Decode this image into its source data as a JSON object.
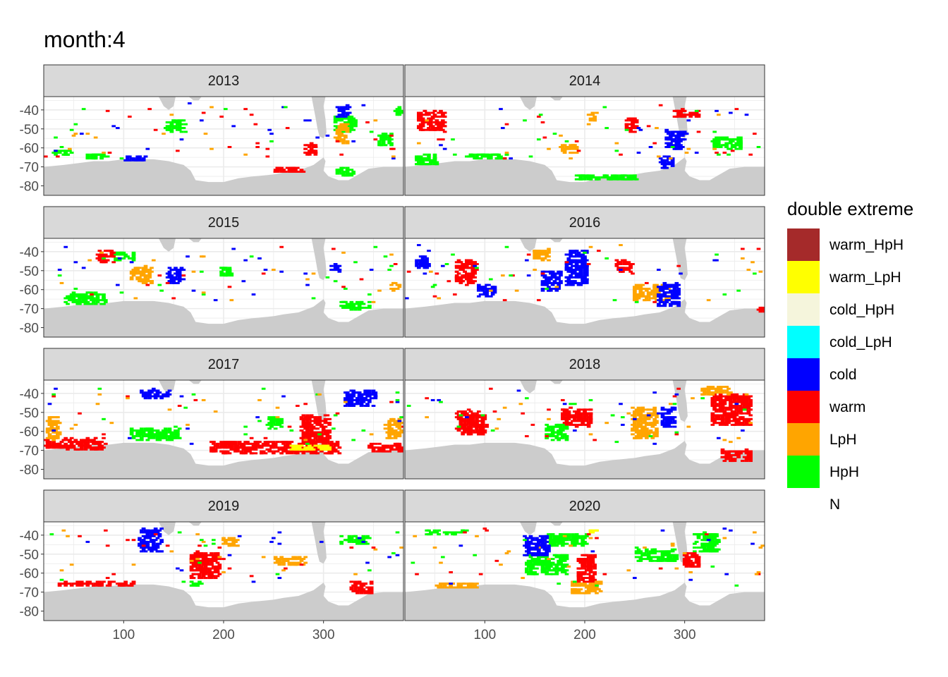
{
  "chart_data": {
    "type": "heatmap",
    "title": "month:4",
    "xlabel": "",
    "ylabel": "",
    "xlim": [
      20,
      380
    ],
    "ylim": [
      -85,
      -33
    ],
    "x_ticks": [
      100,
      200,
      300
    ],
    "y_ticks": [
      -40,
      -50,
      -60,
      -70,
      -80
    ],
    "grid": true,
    "legend": {
      "title": "double extreme",
      "position": "right",
      "entries": [
        {
          "label": "warm_HpH",
          "color": "#A52A2A"
        },
        {
          "label": "warm_LpH",
          "color": "#FFFF00"
        },
        {
          "label": "cold_HpH",
          "color": "#F5F5DC"
        },
        {
          "label": "cold_LpH",
          "color": "#00FFFF"
        },
        {
          "label": "cold",
          "color": "#0000FF"
        },
        {
          "label": "warm",
          "color": "#FF0000"
        },
        {
          "label": "LpH",
          "color": "#FFA500"
        },
        {
          "label": "HpH",
          "color": "#00FF00"
        },
        {
          "label": "N",
          "color": "#FFFFFF"
        }
      ]
    },
    "panels": [
      {
        "year": "2013",
        "regions": [
          {
            "cat": "HpH",
            "lon": 36,
            "lat": -62,
            "w": 20,
            "h": 3
          },
          {
            "cat": "HpH",
            "lon": 72,
            "lat": -64,
            "w": 22,
            "h": 3
          },
          {
            "cat": "HpH",
            "lon": 150,
            "lat": -48,
            "w": 20,
            "h": 6
          },
          {
            "cat": "HpH",
            "lon": 320,
            "lat": -47,
            "w": 22,
            "h": 8
          },
          {
            "cat": "HpH",
            "lon": 360,
            "lat": -55,
            "w": 14,
            "h": 6
          },
          {
            "cat": "HpH",
            "lon": 372,
            "lat": -40,
            "w": 8,
            "h": 4
          },
          {
            "cat": "HpH",
            "lon": 320,
            "lat": -72,
            "w": 18,
            "h": 4
          },
          {
            "cat": "LpH",
            "lon": 316,
            "lat": -52,
            "w": 12,
            "h": 10
          },
          {
            "cat": "warm",
            "lon": 285,
            "lat": -60,
            "w": 12,
            "h": 6
          },
          {
            "cat": "warm",
            "lon": 265,
            "lat": -71,
            "w": 30,
            "h": 3
          },
          {
            "cat": "cold",
            "lon": 318,
            "lat": -40,
            "w": 12,
            "h": 6
          },
          {
            "cat": "cold",
            "lon": 110,
            "lat": -65,
            "w": 20,
            "h": 3
          }
        ]
      },
      {
        "year": "2014",
        "regions": [
          {
            "cat": "warm",
            "lon": 45,
            "lat": -45,
            "w": 28,
            "h": 10
          },
          {
            "cat": "warm",
            "lon": 245,
            "lat": -47,
            "w": 12,
            "h": 8
          },
          {
            "cat": "warm",
            "lon": 300,
            "lat": -41,
            "w": 26,
            "h": 4
          },
          {
            "cat": "LpH",
            "lon": 182,
            "lat": -60,
            "w": 18,
            "h": 4
          },
          {
            "cat": "LpH",
            "lon": 206,
            "lat": -43,
            "w": 8,
            "h": 4
          },
          {
            "cat": "cold",
            "lon": 280,
            "lat": -67,
            "w": 12,
            "h": 6
          },
          {
            "cat": "cold",
            "lon": 290,
            "lat": -55,
            "w": 20,
            "h": 10
          },
          {
            "cat": "HpH",
            "lon": 40,
            "lat": -66,
            "w": 22,
            "h": 6
          },
          {
            "cat": "HpH",
            "lon": 100,
            "lat": -64,
            "w": 40,
            "h": 3
          },
          {
            "cat": "HpH",
            "lon": 220,
            "lat": -75,
            "w": 60,
            "h": 3
          },
          {
            "cat": "HpH",
            "lon": 340,
            "lat": -57,
            "w": 30,
            "h": 6
          }
        ]
      },
      {
        "year": "2015",
        "regions": [
          {
            "cat": "LpH",
            "lon": 116,
            "lat": -52,
            "w": 20,
            "h": 8
          },
          {
            "cat": "HpH",
            "lon": 60,
            "lat": -64,
            "w": 40,
            "h": 6
          },
          {
            "cat": "HpH",
            "lon": 100,
            "lat": -42,
            "w": 20,
            "h": 4
          },
          {
            "cat": "HpH",
            "lon": 200,
            "lat": -50,
            "w": 12,
            "h": 5
          },
          {
            "cat": "HpH",
            "lon": 330,
            "lat": -68,
            "w": 30,
            "h": 4
          },
          {
            "cat": "cold",
            "lon": 150,
            "lat": -52,
            "w": 16,
            "h": 8
          },
          {
            "cat": "cold",
            "lon": 310,
            "lat": -48,
            "w": 10,
            "h": 4
          },
          {
            "cat": "warm",
            "lon": 80,
            "lat": -42,
            "w": 16,
            "h": 6
          },
          {
            "cat": "LpH",
            "lon": 370,
            "lat": -58,
            "w": 8,
            "h": 4
          }
        ]
      },
      {
        "year": "2016",
        "regions": [
          {
            "cat": "LpH",
            "lon": 155,
            "lat": -41,
            "w": 16,
            "h": 6
          },
          {
            "cat": "LpH",
            "lon": 265,
            "lat": -61,
            "w": 36,
            "h": 8
          },
          {
            "cat": "cold",
            "lon": 190,
            "lat": -48,
            "w": 22,
            "h": 18
          },
          {
            "cat": "cold",
            "lon": 282,
            "lat": -62,
            "w": 22,
            "h": 12
          },
          {
            "cat": "cold",
            "lon": 165,
            "lat": -55,
            "w": 20,
            "h": 10
          },
          {
            "cat": "cold",
            "lon": 100,
            "lat": -60,
            "w": 16,
            "h": 6
          },
          {
            "cat": "cold",
            "lon": 36,
            "lat": -45,
            "w": 14,
            "h": 6
          },
          {
            "cat": "warm",
            "lon": 238,
            "lat": -47,
            "w": 16,
            "h": 6
          },
          {
            "cat": "warm",
            "lon": 80,
            "lat": -50,
            "w": 20,
            "h": 12
          },
          {
            "cat": "warm",
            "lon": 375,
            "lat": -70,
            "w": 8,
            "h": 2
          }
        ]
      },
      {
        "year": "2017",
        "regions": [
          {
            "cat": "warm",
            "lon": 250,
            "lat": -68,
            "w": 130,
            "h": 6
          },
          {
            "cat": "warm",
            "lon": 290,
            "lat": -58,
            "w": 30,
            "h": 14
          },
          {
            "cat": "warm",
            "lon": 50,
            "lat": -66,
            "w": 60,
            "h": 6
          },
          {
            "cat": "warm",
            "lon": 360,
            "lat": -68,
            "w": 34,
            "h": 4
          },
          {
            "cat": "warm_LpH",
            "lon": 285,
            "lat": -68,
            "w": 40,
            "h": 3
          },
          {
            "cat": "HpH",
            "lon": 130,
            "lat": -61,
            "w": 50,
            "h": 6
          },
          {
            "cat": "HpH",
            "lon": 250,
            "lat": -55,
            "w": 14,
            "h": 6
          },
          {
            "cat": "LpH",
            "lon": 28,
            "lat": -58,
            "w": 12,
            "h": 12
          },
          {
            "cat": "LpH",
            "lon": 368,
            "lat": -58,
            "w": 16,
            "h": 10
          },
          {
            "cat": "cold",
            "lon": 335,
            "lat": -42,
            "w": 30,
            "h": 8
          },
          {
            "cat": "cold",
            "lon": 130,
            "lat": -40,
            "w": 30,
            "h": 4
          }
        ]
      },
      {
        "year": "2018",
        "regions": [
          {
            "cat": "LpH",
            "lon": 258,
            "lat": -55,
            "w": 24,
            "h": 16
          },
          {
            "cat": "cold",
            "lon": 282,
            "lat": -52,
            "w": 14,
            "h": 10
          },
          {
            "cat": "warm",
            "lon": 345,
            "lat": -48,
            "w": 40,
            "h": 16
          },
          {
            "cat": "warm",
            "lon": 350,
            "lat": -72,
            "w": 30,
            "h": 6
          },
          {
            "cat": "warm",
            "lon": 190,
            "lat": -52,
            "w": 30,
            "h": 10
          },
          {
            "cat": "warm",
            "lon": 85,
            "lat": -55,
            "w": 30,
            "h": 12
          },
          {
            "cat": "LpH",
            "lon": 330,
            "lat": -38,
            "w": 30,
            "h": 4
          },
          {
            "cat": "HpH",
            "lon": 170,
            "lat": -60,
            "w": 20,
            "h": 8
          }
        ]
      },
      {
        "year": "2019",
        "regions": [
          {
            "cat": "cold",
            "lon": 125,
            "lat": -42,
            "w": 22,
            "h": 12
          },
          {
            "cat": "warm",
            "lon": 336,
            "lat": -67,
            "w": 22,
            "h": 6
          },
          {
            "cat": "warm",
            "lon": 70,
            "lat": -65,
            "w": 80,
            "h": 2
          },
          {
            "cat": "warm",
            "lon": 180,
            "lat": -55,
            "w": 30,
            "h": 14
          },
          {
            "cat": "LpH",
            "lon": 265,
            "lat": -53,
            "w": 30,
            "h": 4
          },
          {
            "cat": "LpH",
            "lon": 205,
            "lat": -43,
            "w": 16,
            "h": 4
          },
          {
            "cat": "HpH",
            "lon": 170,
            "lat": -65,
            "w": 12,
            "h": 3
          },
          {
            "cat": "HpH",
            "lon": 330,
            "lat": -42,
            "w": 30,
            "h": 4
          }
        ]
      },
      {
        "year": "2020",
        "regions": [
          {
            "cat": "HpH",
            "lon": 160,
            "lat": -55,
            "w": 40,
            "h": 10
          },
          {
            "cat": "HpH",
            "lon": 180,
            "lat": -42,
            "w": 40,
            "h": 6
          },
          {
            "cat": "HpH",
            "lon": 320,
            "lat": -43,
            "w": 24,
            "h": 10
          },
          {
            "cat": "HpH",
            "lon": 60,
            "lat": -38,
            "w": 40,
            "h": 2
          },
          {
            "cat": "HpH",
            "lon": 270,
            "lat": -50,
            "w": 40,
            "h": 6
          },
          {
            "cat": "cold",
            "lon": 150,
            "lat": -45,
            "w": 24,
            "h": 10
          },
          {
            "cat": "warm",
            "lon": 200,
            "lat": -57,
            "w": 18,
            "h": 14
          },
          {
            "cat": "warm",
            "lon": 305,
            "lat": -53,
            "w": 16,
            "h": 8
          },
          {
            "cat": "LpH",
            "lon": 200,
            "lat": -67,
            "w": 30,
            "h": 6
          },
          {
            "cat": "LpH",
            "lon": 70,
            "lat": -66,
            "w": 40,
            "h": 3
          },
          {
            "cat": "warm_LpH",
            "lon": 207,
            "lat": -38,
            "w": 6,
            "h": 3
          }
        ]
      }
    ]
  }
}
